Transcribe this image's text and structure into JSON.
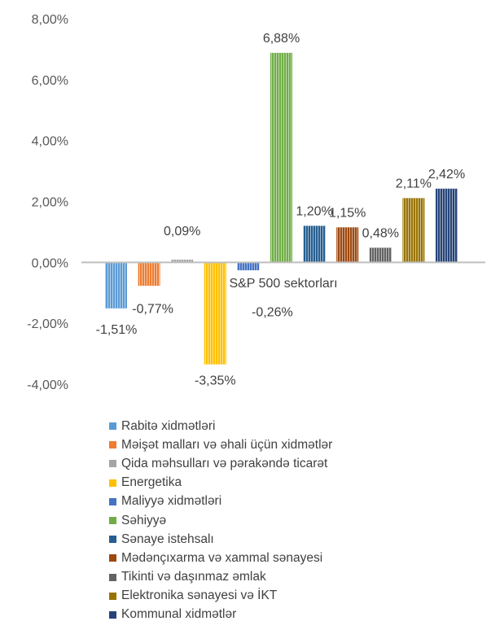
{
  "chart_data": {
    "type": "bar",
    "xlabel": "S&P 500 sektorları",
    "ylim": [
      -4,
      8
    ],
    "y_ticks": [
      "8,00%",
      "6,00%",
      "4,00%",
      "2,00%",
      "0,00%",
      "-2,00%",
      "-4,00%"
    ],
    "y_tick_values": [
      8,
      6,
      4,
      2,
      0,
      -2,
      -4
    ],
    "legend_position": "bottom",
    "series": [
      {
        "name": "Rabitə xidmətləri",
        "value": -1.51,
        "label": "-1,51%",
        "color": "#5B9BD5"
      },
      {
        "name": "Məişət malları və əhali üçün xidmətlər",
        "value": -0.77,
        "label": "-0,77%",
        "color": "#ED7D31"
      },
      {
        "name": "Qida məhsulları və pərakəndə ticarət",
        "value": 0.09,
        "label": "0,09%",
        "color": "#A5A5A5"
      },
      {
        "name": "Energetika",
        "value": -3.35,
        "label": "-3,35%",
        "color": "#FFC000"
      },
      {
        "name": "Maliyyə xidmətləri",
        "value": -0.26,
        "label": "-0,26%",
        "color": "#4472C4"
      },
      {
        "name": "Səhiyyə",
        "value": 6.88,
        "label": "6,88%",
        "color": "#70AD47"
      },
      {
        "name": "Sənaye istehsalı",
        "value": 1.2,
        "label": "1,20%",
        "color": "#255E91"
      },
      {
        "name": "Mədənçıxarma və xammal sənayesi",
        "value": 1.15,
        "label": "1,15%",
        "color": "#9E480E"
      },
      {
        "name": "Tikinti və daşınmaz əmlak",
        "value": 0.48,
        "label": "0,48%",
        "color": "#636363"
      },
      {
        "name": "Elektronika sənayesi və İKT",
        "value": 2.11,
        "label": "2,11%",
        "color": "#997300"
      },
      {
        "name": "Kommunal xidmətlər",
        "value": 2.42,
        "label": "2,42%",
        "color": "#264478"
      }
    ]
  }
}
